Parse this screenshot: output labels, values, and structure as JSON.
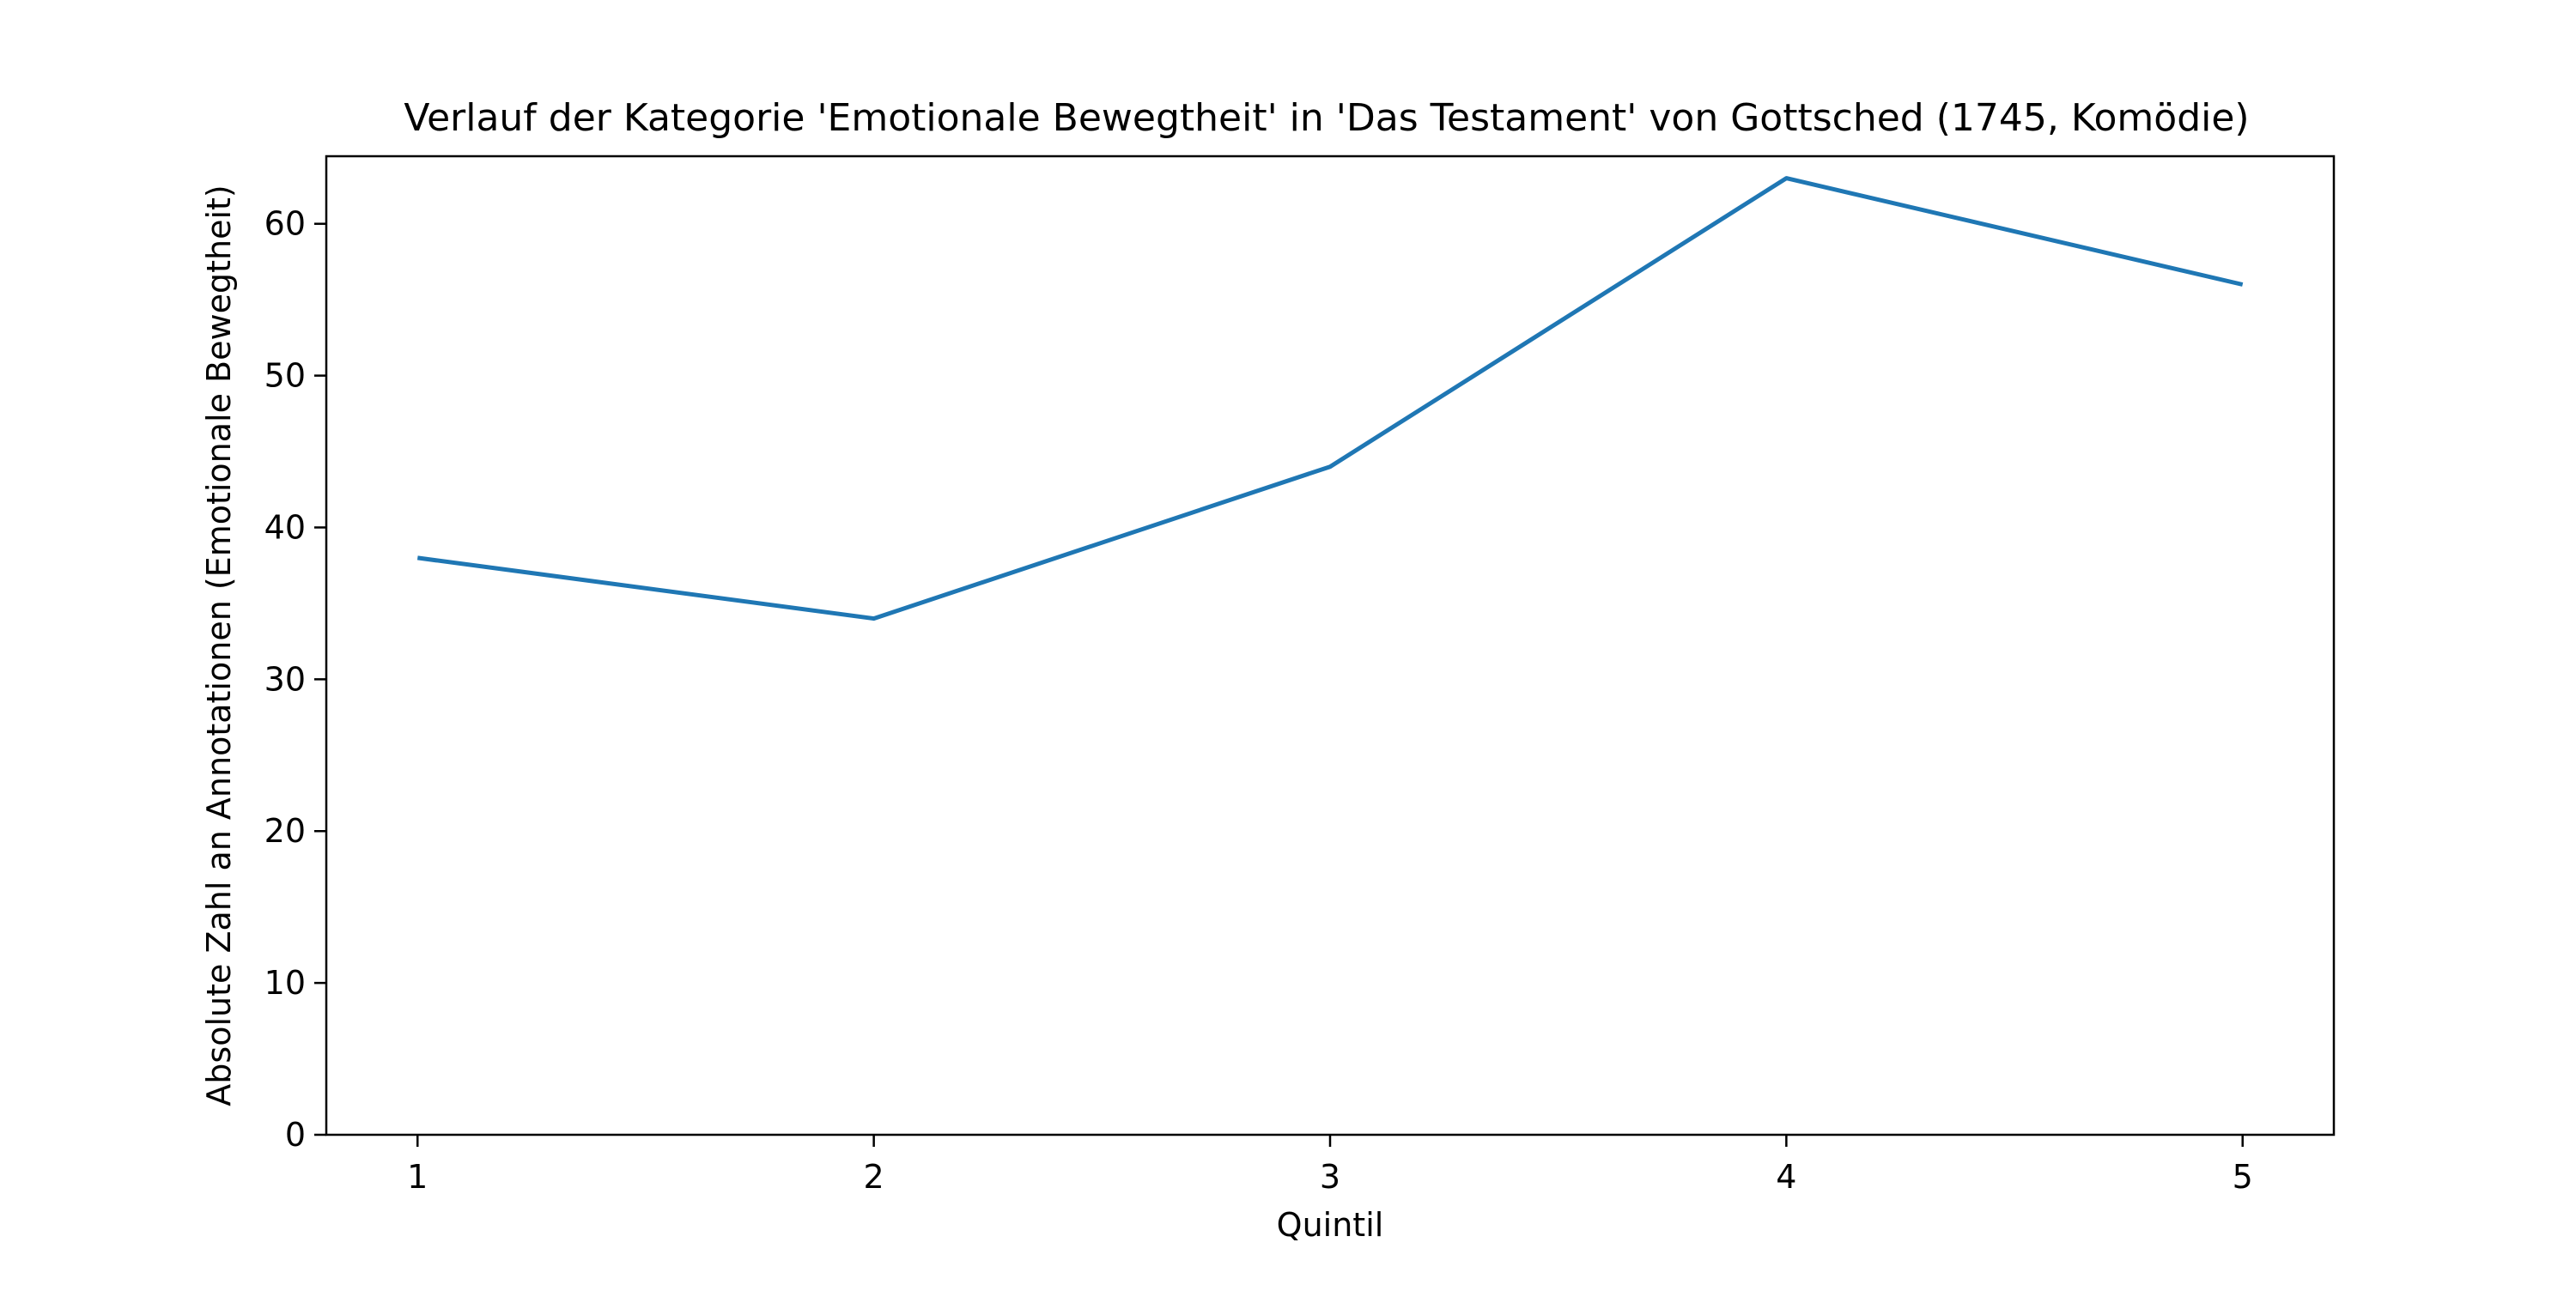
{
  "chart_data": {
    "type": "line",
    "title": "Verlauf der Kategorie 'Emotionale Bewegtheit' in 'Das Testament' von Gottsched (1745, Komödie)",
    "xlabel": "Quintil",
    "ylabel": "Absolute Zahl an Annotationen (Emotionale Bewegtheit)",
    "x": [
      1,
      2,
      3,
      4,
      5
    ],
    "x_tick_labels": [
      "1",
      "2",
      "3",
      "4",
      "5"
    ],
    "xlim": [
      0.8,
      5.2
    ],
    "ylim": [
      0,
      64.45
    ],
    "y_ticks": [
      0,
      10,
      20,
      30,
      40,
      50,
      60
    ],
    "y_tick_labels": [
      "0",
      "10",
      "20",
      "30",
      "40",
      "50",
      "60"
    ],
    "grid": false,
    "series": [
      {
        "values": [
          38,
          34,
          44,
          63,
          56
        ],
        "color": "#1f77b4"
      }
    ]
  }
}
